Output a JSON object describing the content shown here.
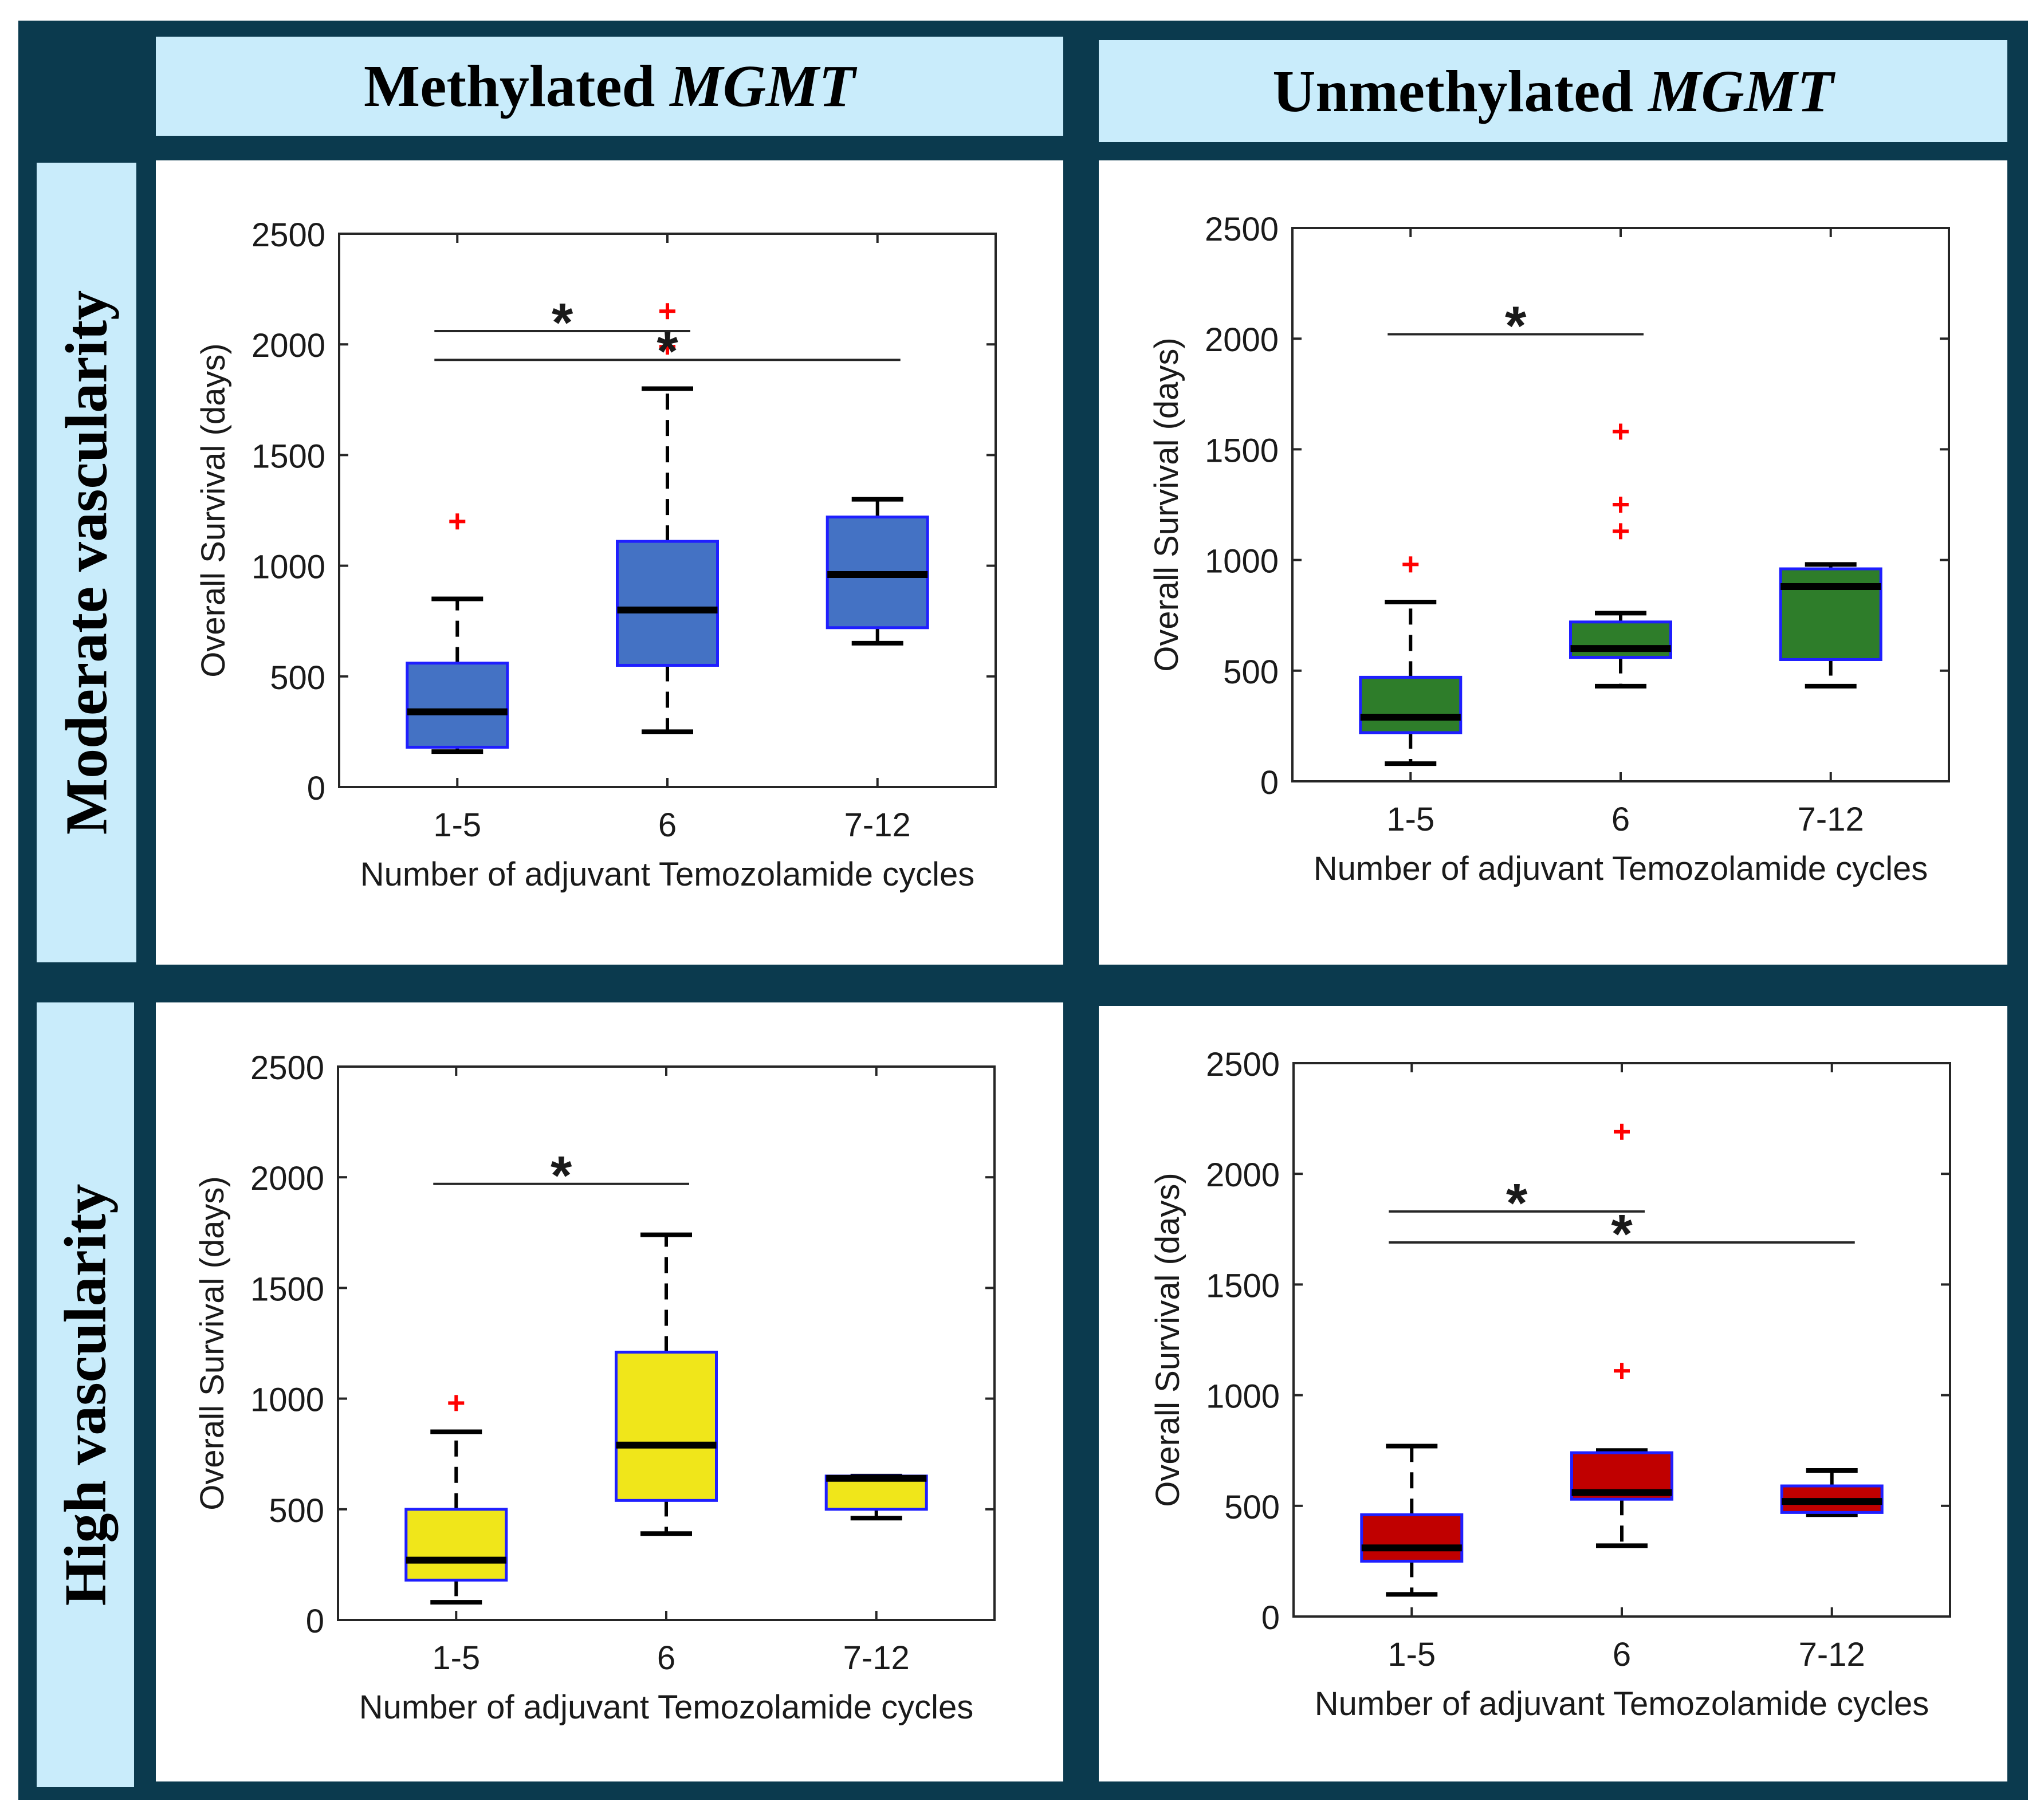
{
  "headers": {
    "col1": {
      "text": "Methylated",
      "gene": "MGMT"
    },
    "col2": {
      "text": "Unmethylated",
      "gene": "MGMT"
    },
    "row1": "Moderate vascularity",
    "row2": "High vascularity"
  },
  "colors": {
    "frame": "#0b3a4e",
    "header_bg": "#c9ecfb",
    "box_edge": "#1f1fff",
    "outlier": "#ff0000",
    "median": "#000000"
  },
  "chart_data": [
    {
      "type": "box",
      "panel": "methylated-moderate",
      "title": "",
      "xlabel": "Number of adjuvant Temozolamide cycles",
      "ylabel": "Overall Survival (days)",
      "ylim": [
        0,
        2500
      ],
      "yticks": [
        0,
        500,
        1000,
        1500,
        2000,
        2500
      ],
      "categories": [
        "1-5",
        "6",
        "7-12"
      ],
      "box_color": "#4472c4",
      "boxes": [
        {
          "min": 160,
          "q1": 180,
          "median": 340,
          "q3": 560,
          "max": 850,
          "outliers": [
            1200
          ]
        },
        {
          "min": 250,
          "q1": 550,
          "median": 800,
          "q3": 1110,
          "max": 1800,
          "outliers": [
            1990,
            2150
          ]
        },
        {
          "min": 650,
          "q1": 720,
          "median": 960,
          "q3": 1220,
          "max": 1300,
          "outliers": []
        }
      ],
      "significance": [
        {
          "from": 0,
          "to": 1,
          "level": 2060,
          "label": "*"
        },
        {
          "from": 0,
          "to": 2,
          "level": 1930,
          "label": "*"
        }
      ]
    },
    {
      "type": "box",
      "panel": "unmethylated-moderate",
      "title": "",
      "xlabel": "Number of adjuvant Temozolamide cycles",
      "ylabel": "Overall Survival (days)",
      "ylim": [
        0,
        2500
      ],
      "yticks": [
        0,
        500,
        1000,
        1500,
        2000,
        2500
      ],
      "categories": [
        "1-5",
        "6",
        "7-12"
      ],
      "box_color": "#2e7d2a",
      "boxes": [
        {
          "min": 80,
          "q1": 220,
          "median": 290,
          "q3": 470,
          "max": 810,
          "outliers": [
            980
          ]
        },
        {
          "min": 430,
          "q1": 560,
          "median": 600,
          "q3": 720,
          "max": 760,
          "outliers": [
            1130,
            1250,
            1580
          ]
        },
        {
          "min": 430,
          "q1": 550,
          "median": 880,
          "q3": 960,
          "max": 980,
          "outliers": []
        }
      ],
      "significance": [
        {
          "from": 0,
          "to": 1,
          "level": 2020,
          "label": "*"
        }
      ]
    },
    {
      "type": "box",
      "panel": "methylated-high",
      "title": "",
      "xlabel": "Number of adjuvant Temozolamide cycles",
      "ylabel": "Overall Survival (days)",
      "ylim": [
        0,
        2500
      ],
      "yticks": [
        0,
        500,
        1000,
        1500,
        2000,
        2500
      ],
      "categories": [
        "1-5",
        "6",
        "7-12"
      ],
      "box_color": "#f0e61a",
      "boxes": [
        {
          "min": 80,
          "q1": 180,
          "median": 270,
          "q3": 500,
          "max": 850,
          "outliers": [
            980
          ]
        },
        {
          "min": 390,
          "q1": 540,
          "median": 790,
          "q3": 1210,
          "max": 1740,
          "outliers": []
        },
        {
          "min": 460,
          "q1": 500,
          "median": 640,
          "q3": 650,
          "max": 650,
          "outliers": []
        }
      ],
      "significance": [
        {
          "from": 0,
          "to": 1,
          "level": 1970,
          "label": "*"
        }
      ]
    },
    {
      "type": "box",
      "panel": "unmethylated-high",
      "title": "",
      "xlabel": "Number of adjuvant Temozolamide cycles",
      "ylabel": "Overall Survival (days)",
      "ylim": [
        0,
        2500
      ],
      "yticks": [
        0,
        500,
        1000,
        1500,
        2000,
        2500
      ],
      "categories": [
        "1-5",
        "6",
        "7-12"
      ],
      "box_color": "#c00000",
      "boxes": [
        {
          "min": 100,
          "q1": 250,
          "median": 310,
          "q3": 460,
          "max": 770,
          "outliers": []
        },
        {
          "min": 320,
          "q1": 530,
          "median": 560,
          "q3": 740,
          "max": 750,
          "outliers": [
            1110,
            2190
          ]
        },
        {
          "min": 460,
          "q1": 470,
          "median": 520,
          "q3": 590,
          "max": 660,
          "outliers": []
        }
      ],
      "significance": [
        {
          "from": 0,
          "to": 1,
          "level": 1830,
          "label": "*"
        },
        {
          "from": 0,
          "to": 2,
          "level": 1690,
          "label": "*"
        }
      ]
    }
  ]
}
